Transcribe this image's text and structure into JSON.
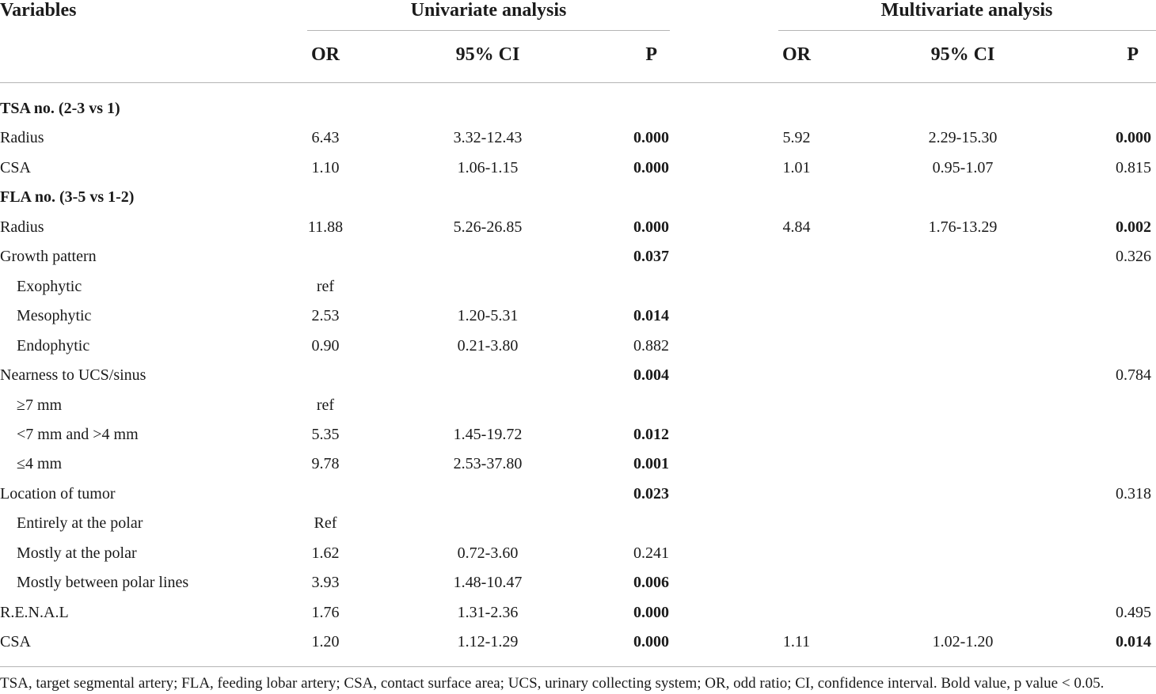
{
  "header": {
    "variables_label": "Variables",
    "univariate_label": "Univariate analysis",
    "multivariate_label": "Multivariate analysis",
    "or_label": "OR",
    "ci_label": "95% CI",
    "p_label": "P"
  },
  "rows": [
    {
      "label": "TSA no. (2-3 vs 1)",
      "section": true,
      "indent": false,
      "u_or": "",
      "u_ci": "",
      "u_p": "",
      "u_p_bold": false,
      "m_or": "",
      "m_ci": "",
      "m_p": "",
      "m_p_bold": false
    },
    {
      "label": "Radius",
      "section": false,
      "indent": false,
      "u_or": "6.43",
      "u_ci": "3.32-12.43",
      "u_p": "0.000",
      "u_p_bold": true,
      "m_or": "5.92",
      "m_ci": "2.29-15.30",
      "m_p": "0.000",
      "m_p_bold": true
    },
    {
      "label": "CSA",
      "section": false,
      "indent": false,
      "u_or": "1.10",
      "u_ci": "1.06-1.15",
      "u_p": "0.000",
      "u_p_bold": true,
      "m_or": "1.01",
      "m_ci": "0.95-1.07",
      "m_p": "0.815",
      "m_p_bold": false
    },
    {
      "label": "FLA no. (3-5 vs 1-2)",
      "section": true,
      "indent": false,
      "u_or": "",
      "u_ci": "",
      "u_p": "",
      "u_p_bold": false,
      "m_or": "",
      "m_ci": "",
      "m_p": "",
      "m_p_bold": false
    },
    {
      "label": "Radius",
      "section": false,
      "indent": false,
      "u_or": "11.88",
      "u_ci": "5.26-26.85",
      "u_p": "0.000",
      "u_p_bold": true,
      "m_or": "4.84",
      "m_ci": "1.76-13.29",
      "m_p": "0.002",
      "m_p_bold": true
    },
    {
      "label": "Growth pattern",
      "section": false,
      "indent": false,
      "u_or": "",
      "u_ci": "",
      "u_p": "0.037",
      "u_p_bold": true,
      "m_or": "",
      "m_ci": "",
      "m_p": "0.326",
      "m_p_bold": false
    },
    {
      "label": "Exophytic",
      "section": false,
      "indent": true,
      "u_or": "ref",
      "u_ci": "",
      "u_p": "",
      "u_p_bold": false,
      "m_or": "",
      "m_ci": "",
      "m_p": "",
      "m_p_bold": false
    },
    {
      "label": "Mesophytic",
      "section": false,
      "indent": true,
      "u_or": "2.53",
      "u_ci": "1.20-5.31",
      "u_p": "0.014",
      "u_p_bold": true,
      "m_or": "",
      "m_ci": "",
      "m_p": "",
      "m_p_bold": false
    },
    {
      "label": "Endophytic",
      "section": false,
      "indent": true,
      "u_or": "0.90",
      "u_ci": "0.21-3.80",
      "u_p": "0.882",
      "u_p_bold": false,
      "m_or": "",
      "m_ci": "",
      "m_p": "",
      "m_p_bold": false
    },
    {
      "label": "Nearness to UCS/sinus",
      "section": false,
      "indent": false,
      "u_or": "",
      "u_ci": "",
      "u_p": "0.004",
      "u_p_bold": true,
      "m_or": "",
      "m_ci": "",
      "m_p": "0.784",
      "m_p_bold": false
    },
    {
      "label": "≥7 mm",
      "section": false,
      "indent": true,
      "u_or": "ref",
      "u_ci": "",
      "u_p": "",
      "u_p_bold": false,
      "m_or": "",
      "m_ci": "",
      "m_p": "",
      "m_p_bold": false
    },
    {
      "label": "<7 mm and >4 mm",
      "section": false,
      "indent": true,
      "u_or": "5.35",
      "u_ci": "1.45-19.72",
      "u_p": "0.012",
      "u_p_bold": true,
      "m_or": "",
      "m_ci": "",
      "m_p": "",
      "m_p_bold": false
    },
    {
      "label": "≤4 mm",
      "section": false,
      "indent": true,
      "u_or": "9.78",
      "u_ci": "2.53-37.80",
      "u_p": "0.001",
      "u_p_bold": true,
      "m_or": "",
      "m_ci": "",
      "m_p": "",
      "m_p_bold": false
    },
    {
      "label": "Location of tumor",
      "section": false,
      "indent": false,
      "u_or": "",
      "u_ci": "",
      "u_p": "0.023",
      "u_p_bold": true,
      "m_or": "",
      "m_ci": "",
      "m_p": "0.318",
      "m_p_bold": false
    },
    {
      "label": "Entirely at the polar",
      "section": false,
      "indent": true,
      "u_or": "Ref",
      "u_ci": "",
      "u_p": "",
      "u_p_bold": false,
      "m_or": "",
      "m_ci": "",
      "m_p": "",
      "m_p_bold": false
    },
    {
      "label": "Mostly at the polar",
      "section": false,
      "indent": true,
      "u_or": "1.62",
      "u_ci": "0.72-3.60",
      "u_p": "0.241",
      "u_p_bold": false,
      "m_or": "",
      "m_ci": "",
      "m_p": "",
      "m_p_bold": false
    },
    {
      "label": "Mostly between polar lines",
      "section": false,
      "indent": true,
      "u_or": "3.93",
      "u_ci": "1.48-10.47",
      "u_p": "0.006",
      "u_p_bold": true,
      "m_or": "",
      "m_ci": "",
      "m_p": "",
      "m_p_bold": false
    },
    {
      "label": "R.E.N.A.L",
      "section": false,
      "indent": false,
      "u_or": "1.76",
      "u_ci": "1.31-2.36",
      "u_p": "0.000",
      "u_p_bold": true,
      "m_or": "",
      "m_ci": "",
      "m_p": "0.495",
      "m_p_bold": false
    },
    {
      "label": "CSA",
      "section": false,
      "indent": false,
      "u_or": "1.20",
      "u_ci": "1.12-1.29",
      "u_p": "0.000",
      "u_p_bold": true,
      "m_or": "1.11",
      "m_ci": "1.02-1.20",
      "m_p": "0.014",
      "m_p_bold": true
    }
  ],
  "footnote": "TSA, target segmental artery; FLA, feeding lobar artery; CSA, contact surface area; UCS, urinary collecting system; OR, odd ratio; CI, confidence interval. Bold value, p value < 0.05."
}
